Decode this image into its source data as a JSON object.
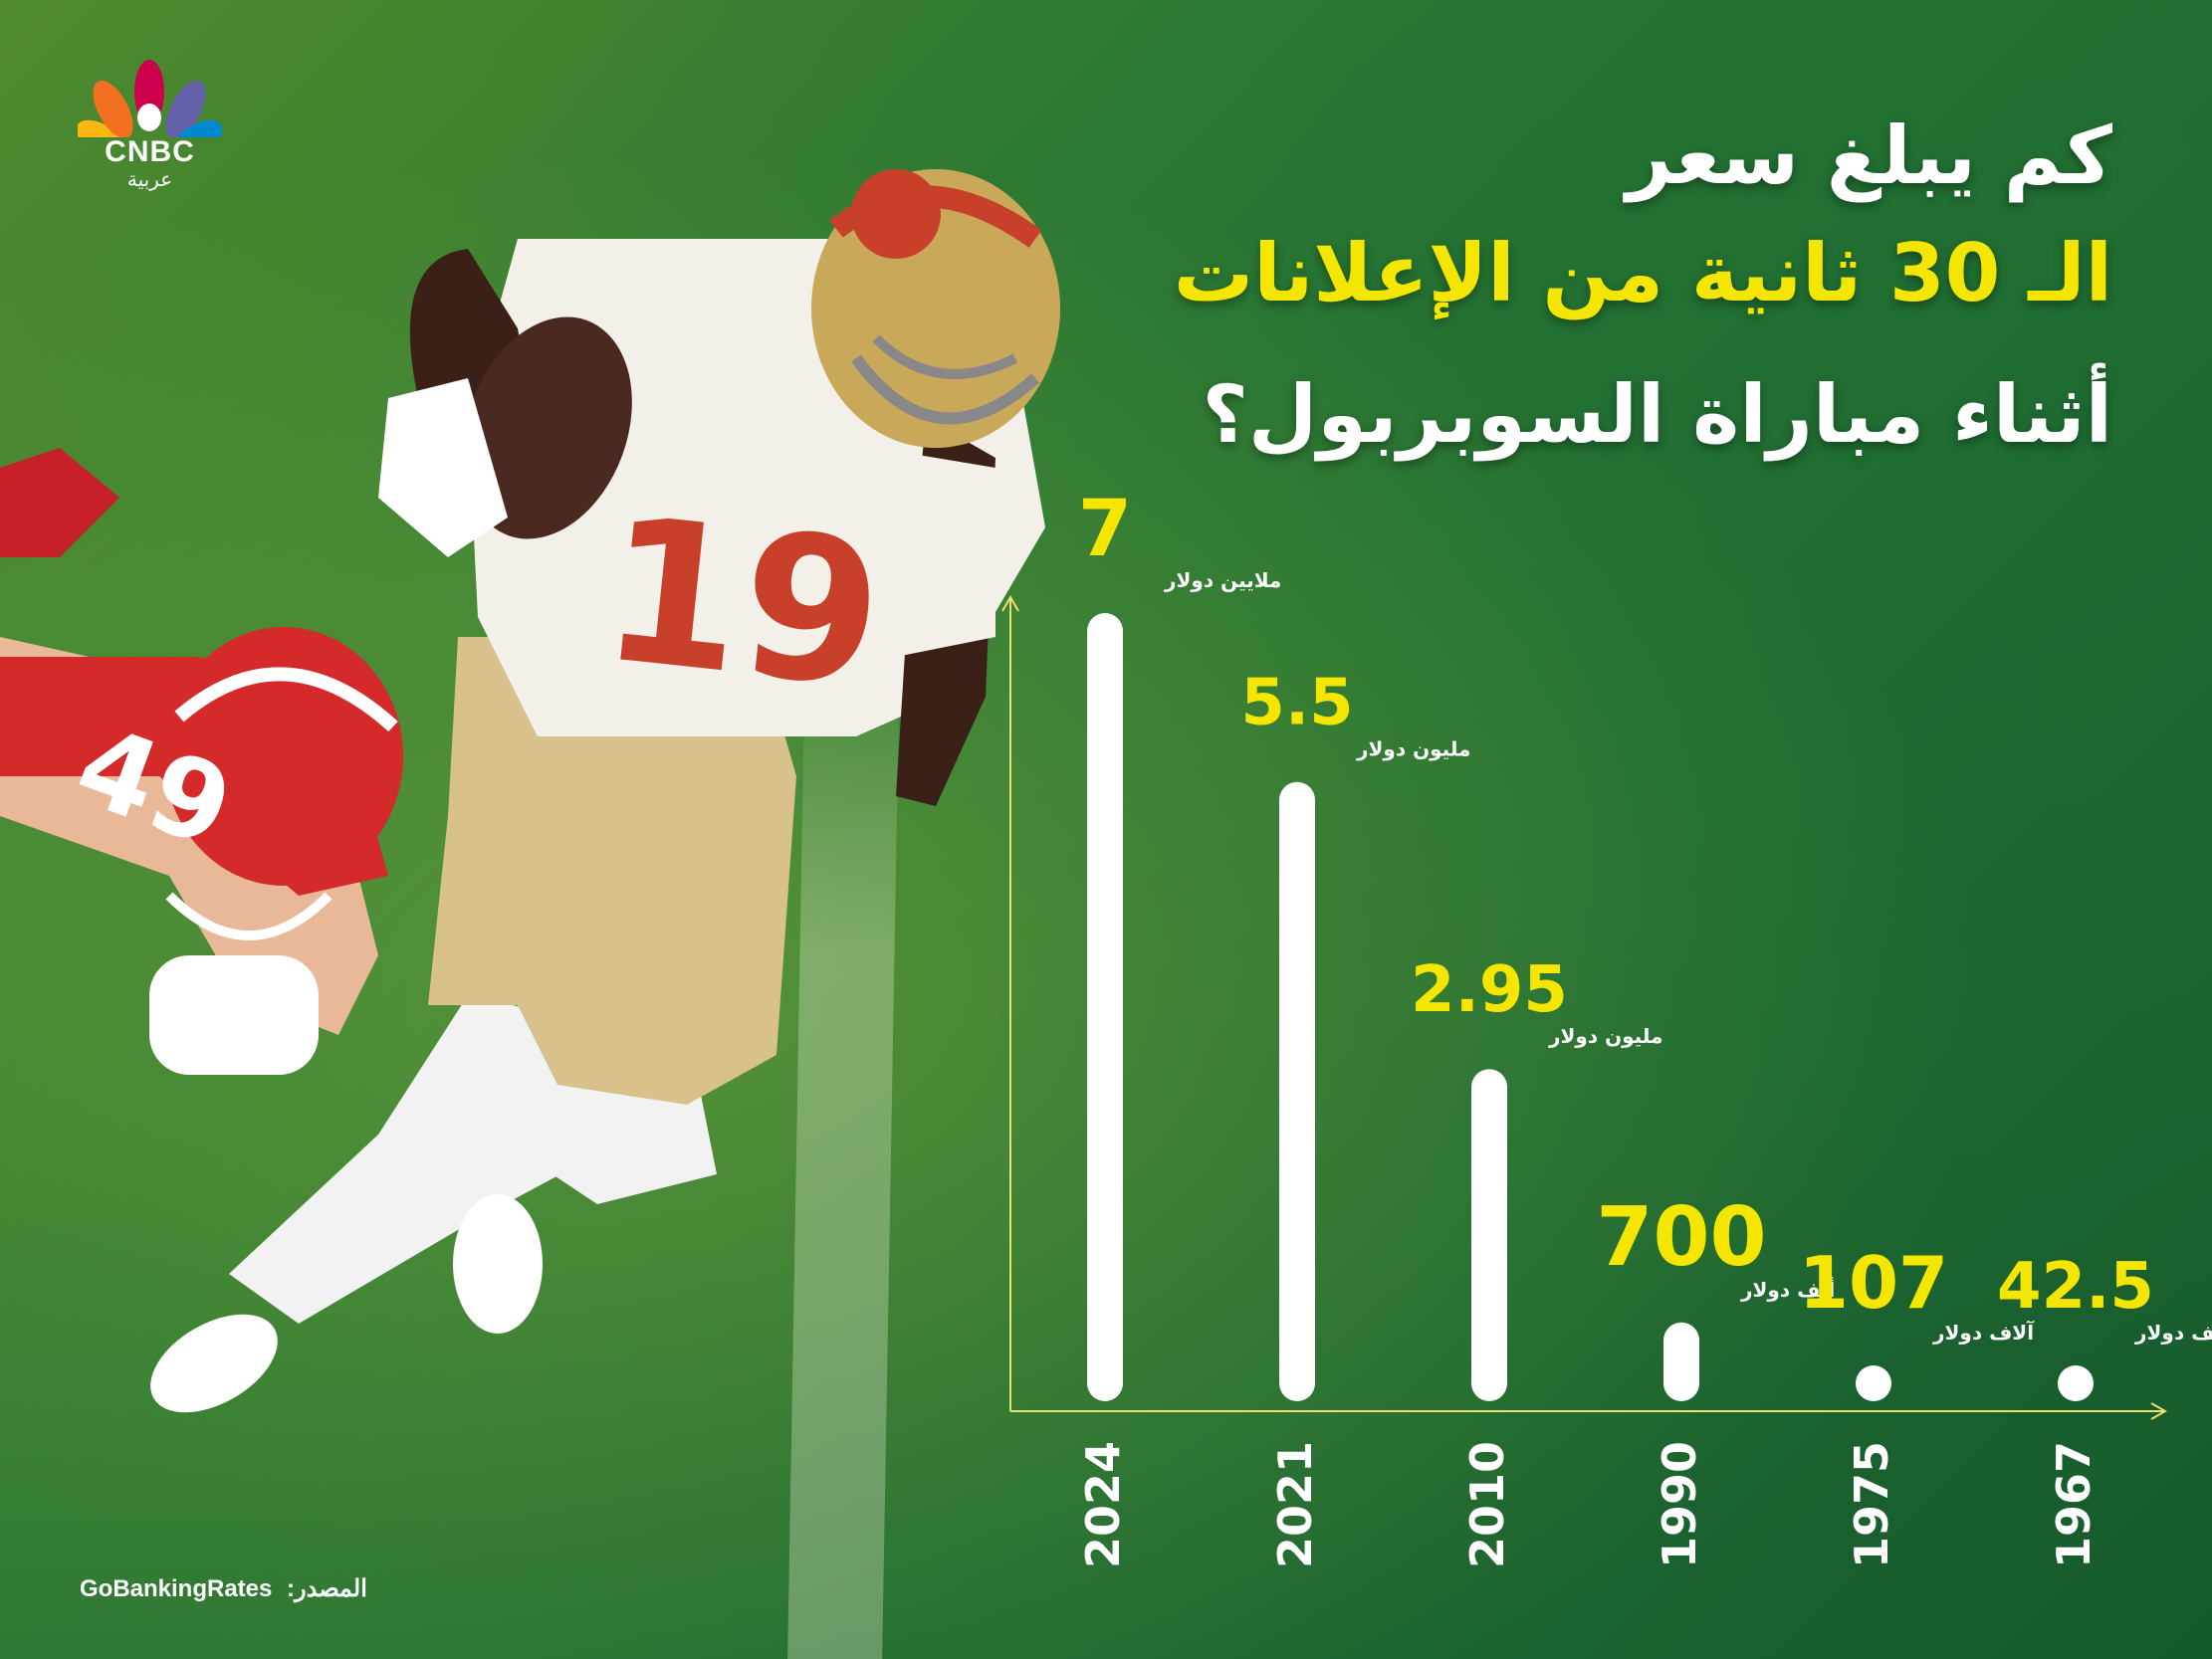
{
  "brand": {
    "logo_text": "CNBC",
    "logo_sub": "عربية"
  },
  "title": {
    "line1": "كم يبلغ سعر",
    "line2": "الـ 30 ثانية من الإعلانات",
    "line3": "أثناء مباراة السوبربول؟"
  },
  "source": {
    "label": "المصدر:",
    "value": "GoBankingRates"
  },
  "chart_data": {
    "type": "bar",
    "title": "",
    "xlabel": "",
    "ylabel": "",
    "categories": [
      "2024",
      "2021",
      "2010",
      "1990",
      "1975",
      "1967"
    ],
    "values_usd": [
      7000000,
      5500000,
      2950000,
      700000,
      107000,
      42500
    ],
    "value_labels": [
      "7",
      "5.5",
      "2.95",
      "700",
      "107",
      "42.5"
    ],
    "unit_labels": [
      "ملايين دولار",
      "مليون دولار",
      "مليون دولار",
      "ألف دولار",
      "آلاف دولار",
      "ألف دولار"
    ],
    "ylim": [
      0,
      7000000
    ],
    "grid": false,
    "legend": "none",
    "colors": {
      "bar": "#ffffff",
      "value": "#f4e600",
      "axis": "#e8e070"
    }
  }
}
